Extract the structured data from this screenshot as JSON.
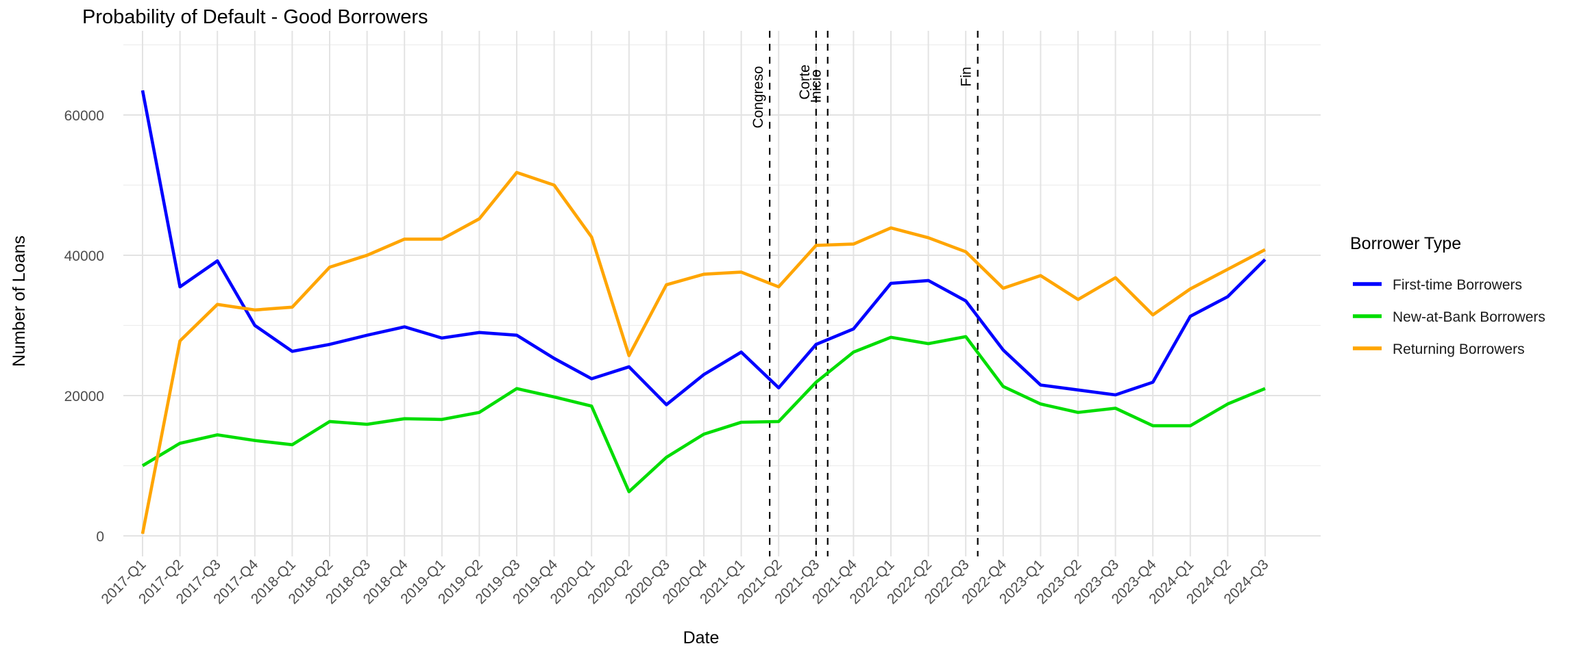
{
  "title": "Probability of Default - Good Borrowers",
  "chart_data": {
    "type": "line",
    "title": "Probability of Default - Good Borrowers",
    "xlabel": "Date",
    "ylabel": "Number of Loans",
    "legend_title": "Borrower Type",
    "legend_position": "right",
    "grid": true,
    "ylim": [
      0,
      70000
    ],
    "y_ticks": [
      0,
      20000,
      40000,
      60000
    ],
    "y_minor_ticks": [
      10000,
      30000,
      50000,
      70000
    ],
    "categories": [
      "2017-Q1",
      "2017-Q2",
      "2017-Q3",
      "2017-Q4",
      "2018-Q1",
      "2018-Q2",
      "2018-Q3",
      "2018-Q4",
      "2019-Q1",
      "2019-Q2",
      "2019-Q3",
      "2019-Q4",
      "2020-Q1",
      "2020-Q2",
      "2020-Q3",
      "2020-Q4",
      "2021-Q1",
      "2021-Q2",
      "2021-Q3",
      "2021-Q4",
      "2022-Q1",
      "2022-Q2",
      "2022-Q3",
      "2022-Q4",
      "2023-Q1",
      "2023-Q2",
      "2023-Q3",
      "2023-Q4",
      "2024-Q1",
      "2024-Q2",
      "2024-Q3"
    ],
    "series": [
      {
        "name": "First-time Borrowers",
        "color": "#0000ff",
        "values": [
          63500,
          35500,
          39200,
          30000,
          26300,
          27300,
          28600,
          29800,
          28200,
          29000,
          28600,
          25300,
          22400,
          24100,
          18700,
          23000,
          26200,
          21100,
          27300,
          29500,
          36000,
          36400,
          33500,
          26500,
          21500,
          20800,
          20100,
          21900,
          31300,
          34100,
          39400
        ]
      },
      {
        "name": "New-at-Bank Borrowers",
        "color": "#00dd00",
        "values": [
          10000,
          13200,
          14400,
          13600,
          13000,
          16300,
          15900,
          16700,
          16600,
          17600,
          21000,
          19800,
          18500,
          6300,
          11200,
          14500,
          16200,
          16300,
          21900,
          26200,
          28300,
          27400,
          28400,
          21300,
          18800,
          17600,
          18200,
          15700,
          15700,
          18800,
          21000
        ]
      },
      {
        "name": "Returning Borrowers",
        "color": "#ffa500",
        "values": [
          300,
          27800,
          33000,
          32200,
          32600,
          38300,
          40000,
          42300,
          42300,
          45200,
          51800,
          50000,
          42600,
          25700,
          35800,
          37300,
          37600,
          35500,
          41400,
          41600,
          43900,
          42500,
          40500,
          35300,
          37100,
          33700,
          36800,
          31500,
          35200,
          38000,
          40800
        ]
      }
    ],
    "annotations": [
      {
        "label": "Congreso",
        "x_index": 16.76,
        "label_center_y": 142
      },
      {
        "label": "Corte",
        "x_index": 18.0,
        "label_center_y": 120
      },
      {
        "label": "Inicio",
        "x_index": 18.31,
        "label_center_y": 126
      },
      {
        "label": "Fin",
        "x_index": 22.32,
        "label_center_y": 112
      }
    ]
  },
  "colors": {
    "background": "#ffffff",
    "grid_major": "#e3e3e3",
    "grid_minor": "#ededed",
    "axis_text": "#4d4d4d",
    "annotation_line": "#000000"
  }
}
